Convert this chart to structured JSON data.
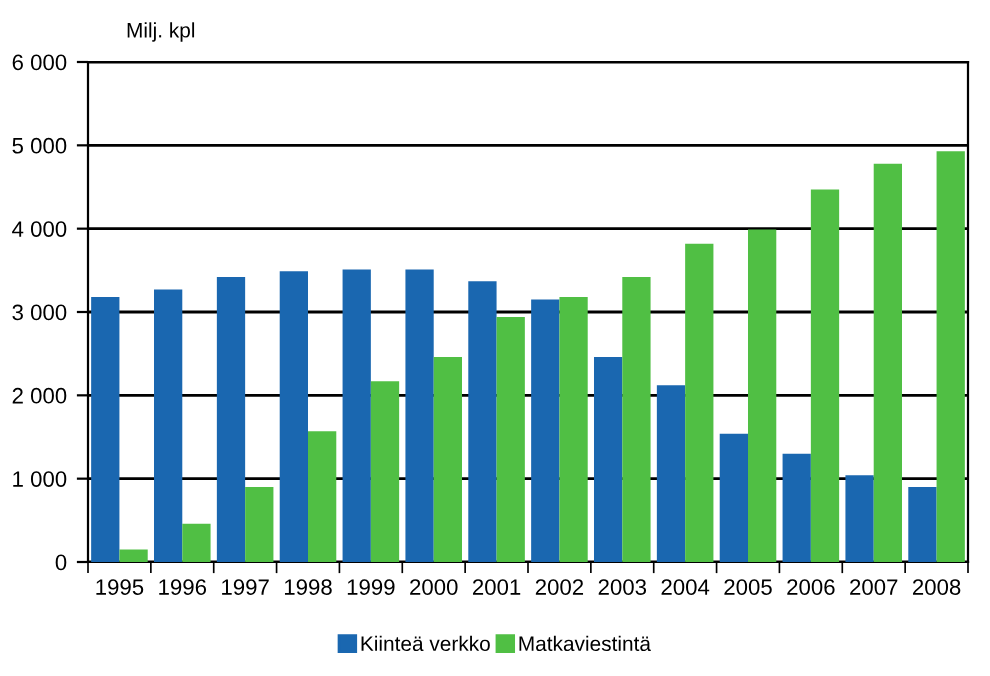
{
  "chart_data": {
    "type": "bar",
    "ylabel": "Milj. kpl",
    "categories": [
      "1995",
      "1996",
      "1997",
      "1998",
      "1999",
      "2000",
      "2001",
      "2002",
      "2003",
      "2004",
      "2005",
      "2006",
      "2007",
      "2008"
    ],
    "series": [
      {
        "name": "Kiinteä verkko",
        "color": "#1a67b0",
        "values": [
          3180,
          3270,
          3420,
          3490,
          3510,
          3510,
          3370,
          3150,
          2460,
          2120,
          1540,
          1300,
          1040,
          900
        ]
      },
      {
        "name": "Matkaviestintä",
        "color": "#50bf44",
        "values": [
          150,
          460,
          900,
          1570,
          2170,
          2460,
          2940,
          3180,
          3420,
          3820,
          3990,
          4470,
          4780,
          4930
        ]
      }
    ],
    "ylim": [
      0,
      6000
    ],
    "yticks": [
      {
        "value": 0,
        "label": "0"
      },
      {
        "value": 1000,
        "label": "1 000"
      },
      {
        "value": 2000,
        "label": "2 000"
      },
      {
        "value": 3000,
        "label": "3 000"
      },
      {
        "value": 4000,
        "label": "4 000"
      },
      {
        "value": 5000,
        "label": "5 000"
      },
      {
        "value": 6000,
        "label": "6 000"
      }
    ],
    "grid": "y",
    "legend": "bottom"
  }
}
